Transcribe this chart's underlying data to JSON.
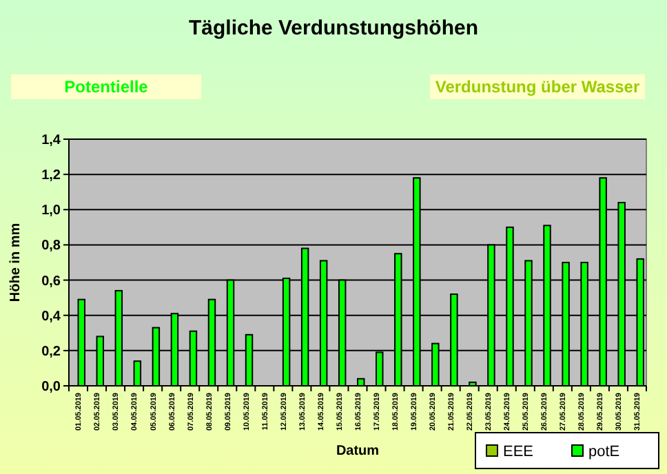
{
  "chart_data": {
    "type": "bar",
    "title": "Tägliche Verdunstungshöhen",
    "annotations": [
      "Potentielle",
      "Verdunstung über Wasser"
    ],
    "xlabel": "Datum",
    "ylabel": "Höhe in mm",
    "categories": [
      "01.05.2019",
      "02.05.2019",
      "03.05.2019",
      "04.05.2019",
      "05.05.2019",
      "06.05.2019",
      "07.05.2019",
      "08.05.2019",
      "09.05.2019",
      "10.05.2019",
      "11.05.2019",
      "12.05.2019",
      "13.05.2019",
      "14.05.2019",
      "15.05.2019",
      "16.05.2019",
      "17.05.2019",
      "18.05.2019",
      "19.05.2019",
      "20.05.2019",
      "21.05.2019",
      "22.05.2019",
      "23.05.2019",
      "24.05.2019",
      "25.05.2019",
      "26.05.2019",
      "27.05.2019",
      "28.05.2019",
      "29.05.2019",
      "30.05.2019",
      "31.05.2019"
    ],
    "series": [
      {
        "name": "EEE",
        "color": "#99cc00",
        "values": [
          null,
          null,
          null,
          null,
          null,
          null,
          null,
          null,
          null,
          null,
          null,
          null,
          null,
          null,
          null,
          null,
          null,
          null,
          null,
          null,
          null,
          null,
          null,
          null,
          null,
          null,
          null,
          null,
          null,
          null,
          null
        ]
      },
      {
        "name": "potE",
        "color": "#00ff00",
        "values": [
          0.49,
          0.28,
          0.54,
          0.14,
          0.33,
          0.41,
          0.31,
          0.49,
          0.6,
          0.29,
          0,
          0.61,
          0.78,
          0.71,
          0.6,
          0.04,
          0.19,
          0.75,
          1.18,
          0.24,
          0.52,
          0.02,
          0.8,
          0.9,
          0.71,
          0.91,
          0.7,
          0.7,
          1.18,
          1.04,
          0.72
        ]
      }
    ],
    "ylim": [
      0,
      1.4
    ],
    "yticks": [
      {
        "value": 0,
        "label": "0,0"
      },
      {
        "value": 0.2,
        "label": "0,2"
      },
      {
        "value": 0.4,
        "label": "0,4"
      },
      {
        "value": 0.6,
        "label": "0,6"
      },
      {
        "value": 0.8,
        "label": "0,8"
      },
      {
        "value": 1,
        "label": "1,0"
      },
      {
        "value": 1.2,
        "label": "1,2"
      },
      {
        "value": 1.4,
        "label": "1,4"
      }
    ],
    "grid": "y",
    "legend": "bottom right"
  }
}
